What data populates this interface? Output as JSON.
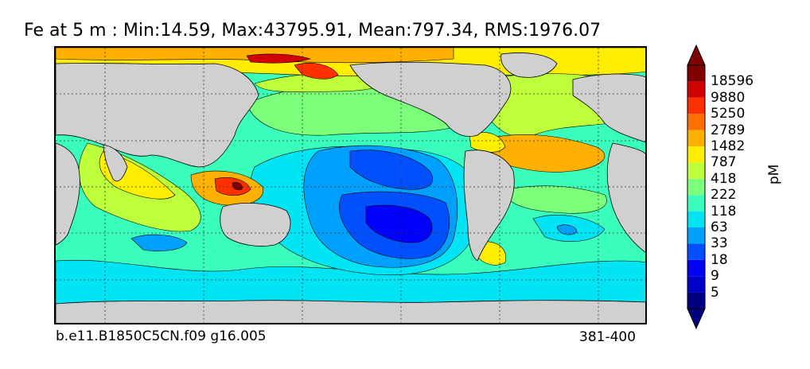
{
  "title": "Fe at 5 m : Min:14.59, Max:43795.91, Mean:797.34, RMS:1976.07",
  "caption_left": "b.e11.B1850C5CN.f09 g16.005",
  "caption_right": "381-400",
  "colorbar": {
    "unit_label": "pM",
    "extend": "both",
    "ticks": [
      "5",
      "9",
      "18",
      "33",
      "63",
      "118",
      "222",
      "418",
      "787",
      "1482",
      "2789",
      "5250",
      "9880",
      "18596"
    ],
    "colors": [
      "#00007f",
      "#0000c8",
      "#0000ff",
      "#0050ff",
      "#00a0ff",
      "#00e4f4",
      "#3affbc",
      "#7cff7a",
      "#bcff3a",
      "#ffee00",
      "#ffb000",
      "#ff7000",
      "#ff3000",
      "#d20000",
      "#7f0000"
    ]
  },
  "map": {
    "land_color": "#d0d0d0",
    "gridlines": "dotted",
    "colors": {
      "deep_blue": "#0000ff",
      "blue": "#0050ff",
      "mid_blue": "#00a0ff",
      "cyan": "#00e4f4",
      "aqua_green": "#3affbc",
      "green": "#7cff7a",
      "yellow_green": "#bcff3a",
      "yellow": "#ffee00",
      "orange": "#ffb000",
      "dark_orange": "#ff7000",
      "red": "#ff3000",
      "dark_red": "#d20000",
      "maroon": "#7f0000"
    }
  }
}
